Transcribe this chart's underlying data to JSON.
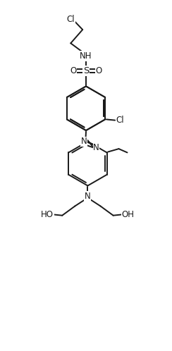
{
  "bg_color": "#ffffff",
  "line_color": "#1a1a1a",
  "lw": 1.4,
  "fs": 8.5,
  "figsize": [
    2.44,
    4.98
  ],
  "dpi": 100,
  "xlim": [
    -1.5,
    8.5
  ],
  "ylim": [
    -1.0,
    19.5
  ]
}
